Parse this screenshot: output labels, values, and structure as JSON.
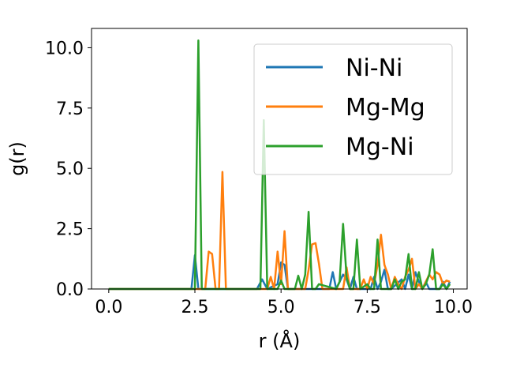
{
  "chart_data": {
    "type": "line",
    "title": "",
    "xlabel": "r (Å)",
    "ylabel": "g(r)",
    "xlim": [
      -0.5,
      10.4
    ],
    "ylim": [
      0,
      10.8
    ],
    "xticks": [
      "0.0",
      "2.5",
      "5.0",
      "7.5",
      "10.0"
    ],
    "yticks": [
      "0.0",
      "2.5",
      "5.0",
      "7.5",
      "10.0"
    ],
    "grid": false,
    "legend_position": "top-right",
    "series": [
      {
        "name": "Ni-Ni",
        "color": "#1f77b4",
        "x": [
          0.0,
          2.4,
          2.5,
          2.6,
          4.3,
          4.45,
          4.6,
          4.9,
          5.0,
          5.1,
          5.2,
          6.4,
          6.5,
          6.6,
          6.8,
          6.9,
          7.0,
          7.1,
          7.2,
          7.6,
          7.7,
          7.8,
          7.9,
          8.0,
          8.1,
          8.2,
          8.5,
          8.6,
          8.7,
          8.8,
          8.9,
          9.0,
          9.1,
          9.2,
          9.3,
          9.6,
          9.7,
          9.8,
          9.9
        ],
        "y": [
          0.0,
          0.0,
          1.4,
          0.0,
          0.0,
          0.4,
          0.0,
          0.2,
          1.1,
          1.0,
          0.0,
          0.0,
          0.7,
          0.0,
          0.6,
          0.4,
          0.0,
          0.5,
          0.0,
          0.0,
          0.5,
          0.0,
          0.3,
          0.8,
          0.0,
          0.0,
          0.4,
          0.0,
          0.6,
          0.0,
          0.7,
          0.3,
          0.0,
          0.3,
          0.0,
          0.0,
          0.3,
          0.0,
          0.3
        ]
      },
      {
        "name": "Mg-Mg",
        "color": "#ff7f0e",
        "x": [
          0.0,
          2.8,
          2.9,
          3.0,
          3.1,
          3.2,
          3.3,
          3.4,
          4.6,
          4.7,
          4.8,
          4.9,
          5.0,
          5.1,
          5.2,
          5.7,
          5.8,
          5.9,
          6.0,
          6.1,
          6.2,
          6.8,
          6.9,
          7.0,
          7.3,
          7.4,
          7.5,
          7.6,
          7.7,
          7.8,
          7.9,
          8.0,
          8.1,
          8.2,
          8.3,
          8.4,
          8.5,
          8.6,
          8.7,
          8.8,
          8.9,
          9.0,
          9.1,
          9.2,
          9.3,
          9.4,
          9.5,
          9.6,
          9.7,
          9.8,
          9.9
        ],
        "y": [
          0.0,
          0.0,
          1.55,
          1.45,
          0.0,
          0.0,
          4.85,
          0.0,
          0.0,
          0.5,
          0.0,
          1.55,
          0.2,
          2.4,
          0.0,
          0.0,
          0.8,
          1.85,
          1.9,
          1.05,
          0.0,
          0.0,
          0.9,
          0.0,
          0.0,
          0.4,
          0.0,
          0.5,
          0.2,
          1.0,
          2.25,
          1.0,
          0.6,
          0.0,
          0.5,
          0.2,
          0.0,
          0.5,
          0.8,
          1.25,
          0.0,
          0.2,
          0.0,
          0.3,
          0.6,
          0.4,
          0.7,
          0.6,
          0.2,
          0.35,
          0.3
        ]
      },
      {
        "name": "Mg-Ni",
        "color": "#2ca02c",
        "x": [
          0.0,
          2.5,
          2.6,
          2.7,
          4.4,
          4.5,
          4.6,
          4.8,
          4.9,
          5.0,
          5.1,
          5.4,
          5.5,
          5.6,
          5.7,
          5.8,
          5.9,
          6.0,
          6.1,
          6.6,
          6.7,
          6.8,
          6.9,
          7.0,
          7.1,
          7.2,
          7.3,
          7.5,
          7.6,
          7.7,
          7.8,
          7.9,
          8.0,
          8.2,
          8.3,
          8.4,
          8.5,
          8.6,
          8.7,
          8.8,
          8.9,
          9.0,
          9.1,
          9.2,
          9.3,
          9.4,
          9.5,
          9.6,
          9.7,
          9.8,
          9.9
        ],
        "y": [
          0.0,
          0.0,
          10.3,
          0.0,
          0.0,
          7.0,
          0.0,
          0.0,
          0.0,
          0.35,
          0.0,
          0.0,
          0.55,
          0.0,
          0.6,
          3.2,
          0.0,
          0.0,
          0.2,
          0.0,
          0.3,
          2.7,
          0.5,
          0.0,
          0.0,
          2.05,
          0.0,
          0.2,
          0.0,
          0.0,
          2.05,
          0.0,
          0.0,
          0.0,
          0.4,
          0.0,
          0.3,
          0.4,
          1.45,
          0.0,
          0.0,
          0.7,
          0.0,
          0.2,
          0.6,
          1.65,
          0.0,
          0.0,
          0.2,
          0.0,
          0.2
        ]
      }
    ]
  }
}
